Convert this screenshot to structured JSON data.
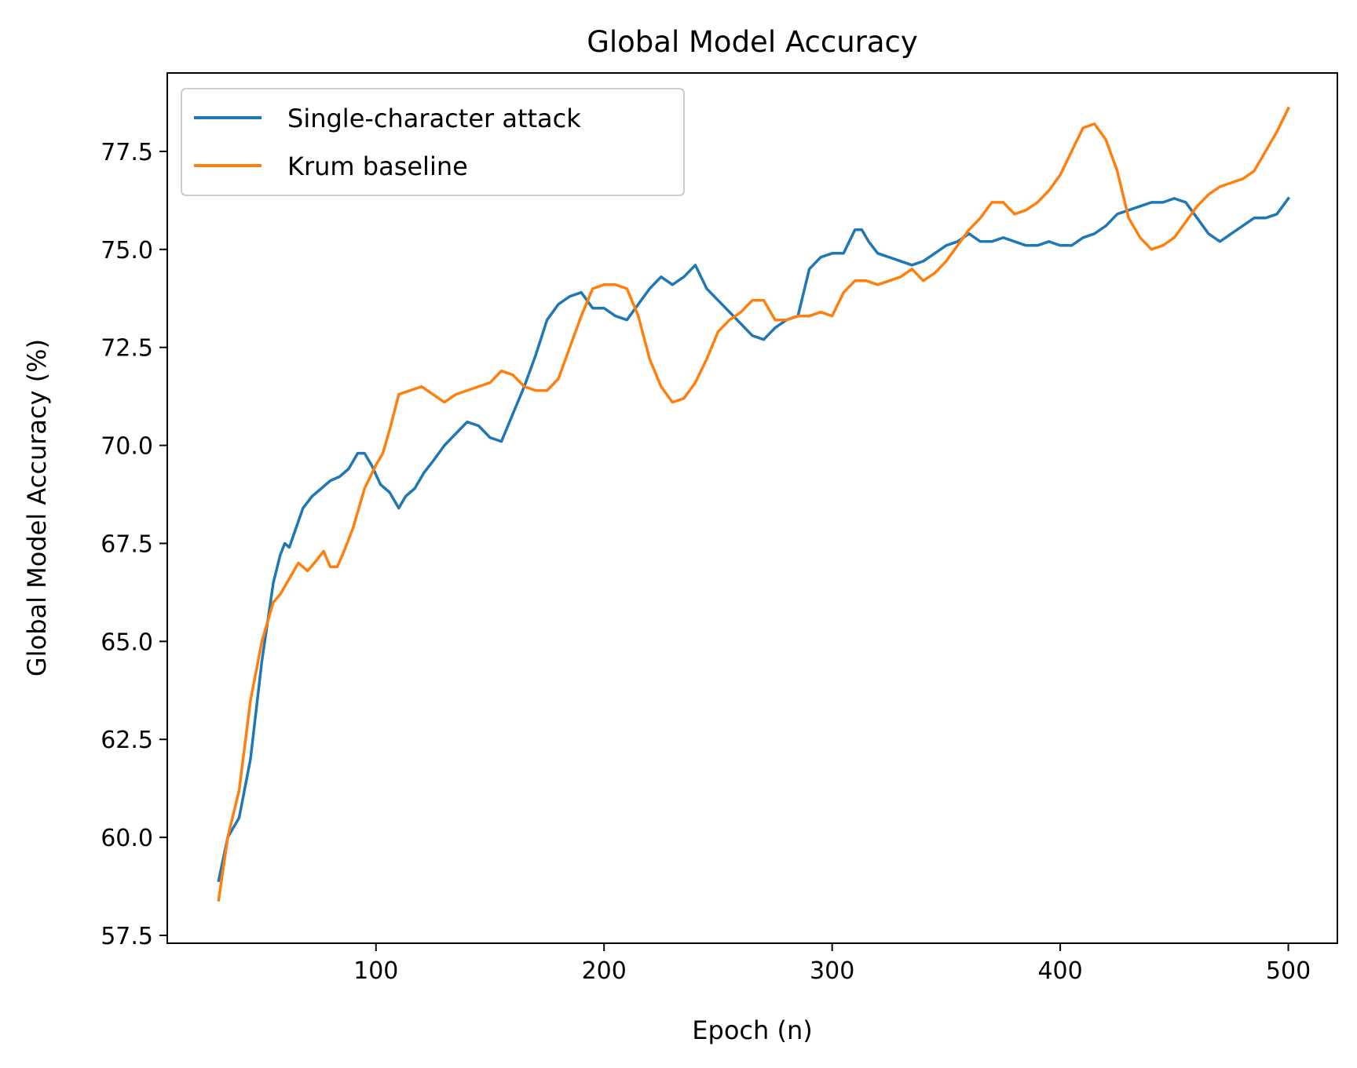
{
  "chart_data": {
    "type": "line",
    "title": "Global Model Accuracy",
    "xlabel": "Epoch (n)",
    "ylabel": "Global Model Accuracy (%)",
    "xlim": [
      8.5,
      521.5
    ],
    "ylim": [
      57.3,
      79.5
    ],
    "xticks": [
      100,
      200,
      300,
      400,
      500
    ],
    "yticks": [
      57.5,
      60.0,
      62.5,
      65.0,
      67.5,
      70.0,
      72.5,
      75.0,
      77.5
    ],
    "ytick_labels": [
      "57.5",
      "60.0",
      "62.5",
      "65.0",
      "67.5",
      "70.0",
      "72.5",
      "75.0",
      "77.5"
    ],
    "grid": false,
    "legend": "upper-left",
    "series": [
      {
        "name": "Single-character attack",
        "color": "#1f77b4",
        "x": [
          31,
          35,
          40,
          45,
          50,
          55,
          58,
          60,
          62,
          65,
          68,
          72,
          76,
          80,
          84,
          88,
          92,
          95,
          98,
          102,
          106,
          110,
          113,
          117,
          121,
          125,
          130,
          135,
          140,
          145,
          150,
          155,
          160,
          165,
          170,
          175,
          180,
          185,
          190,
          195,
          200,
          205,
          210,
          215,
          220,
          225,
          230,
          235,
          240,
          245,
          250,
          255,
          260,
          265,
          270,
          275,
          280,
          285,
          290,
          295,
          300,
          305,
          310,
          313,
          316,
          320,
          325,
          330,
          335,
          340,
          345,
          350,
          355,
          360,
          365,
          370,
          375,
          380,
          385,
          390,
          395,
          400,
          405,
          410,
          415,
          420,
          425,
          430,
          435,
          440,
          445,
          450,
          455,
          460,
          465,
          470,
          475,
          480,
          485,
          490,
          495,
          500
        ],
        "y": [
          58.9,
          60.0,
          60.5,
          62.0,
          64.5,
          66.5,
          67.2,
          67.5,
          67.4,
          67.9,
          68.4,
          68.7,
          68.9,
          69.1,
          69.2,
          69.4,
          69.8,
          69.8,
          69.5,
          69.0,
          68.8,
          68.4,
          68.7,
          68.9,
          69.3,
          69.6,
          70.0,
          70.3,
          70.6,
          70.5,
          70.2,
          70.1,
          70.8,
          71.5,
          72.3,
          73.2,
          73.6,
          73.8,
          73.9,
          73.5,
          73.5,
          73.3,
          73.2,
          73.6,
          74.0,
          74.3,
          74.1,
          74.3,
          74.6,
          74.0,
          73.7,
          73.4,
          73.1,
          72.8,
          72.7,
          73.0,
          73.2,
          73.3,
          74.5,
          74.8,
          74.9,
          74.9,
          75.5,
          75.5,
          75.2,
          74.9,
          74.8,
          74.7,
          74.6,
          74.7,
          74.9,
          75.1,
          75.2,
          75.4,
          75.2,
          75.2,
          75.3,
          75.2,
          75.1,
          75.1,
          75.2,
          75.1,
          75.1,
          75.3,
          75.4,
          75.6,
          75.9,
          76.0,
          76.1,
          76.2,
          76.2,
          76.3,
          76.2,
          75.8,
          75.4,
          75.2,
          75.4,
          75.6,
          75.8,
          75.8,
          75.9,
          76.3
        ]
      },
      {
        "name": "Krum baseline",
        "color": "#ff7f0e",
        "x": [
          31,
          35,
          40,
          45,
          50,
          55,
          58,
          62,
          66,
          70,
          73,
          77,
          80,
          83,
          86,
          90,
          95,
          100,
          103,
          106,
          110,
          115,
          120,
          125,
          130,
          135,
          140,
          145,
          150,
          155,
          160,
          165,
          170,
          175,
          180,
          185,
          190,
          195,
          200,
          205,
          210,
          215,
          220,
          225,
          230,
          235,
          240,
          245,
          250,
          255,
          260,
          265,
          270,
          275,
          280,
          285,
          290,
          295,
          300,
          305,
          310,
          315,
          320,
          325,
          330,
          335,
          340,
          345,
          350,
          355,
          360,
          365,
          370,
          375,
          380,
          385,
          390,
          395,
          400,
          405,
          410,
          415,
          420,
          425,
          430,
          435,
          440,
          445,
          450,
          455,
          460,
          465,
          470,
          475,
          480,
          485,
          490,
          495,
          500
        ],
        "y": [
          58.4,
          60.0,
          61.2,
          63.5,
          65.0,
          66.0,
          66.2,
          66.6,
          67.0,
          66.8,
          67.0,
          67.3,
          66.9,
          66.9,
          67.3,
          67.9,
          68.9,
          69.5,
          69.8,
          70.4,
          71.3,
          71.4,
          71.5,
          71.3,
          71.1,
          71.3,
          71.4,
          71.5,
          71.6,
          71.9,
          71.8,
          71.5,
          71.4,
          71.4,
          71.7,
          72.5,
          73.3,
          74.0,
          74.1,
          74.1,
          74.0,
          73.3,
          72.2,
          71.5,
          71.1,
          71.2,
          71.6,
          72.2,
          72.9,
          73.2,
          73.4,
          73.7,
          73.7,
          73.2,
          73.2,
          73.3,
          73.3,
          73.4,
          73.3,
          73.9,
          74.2,
          74.2,
          74.1,
          74.2,
          74.3,
          74.5,
          74.2,
          74.4,
          74.7,
          75.1,
          75.5,
          75.8,
          76.2,
          76.2,
          75.9,
          76.0,
          76.2,
          76.5,
          76.9,
          77.5,
          78.1,
          78.2,
          77.8,
          77.0,
          75.8,
          75.3,
          75.0,
          75.1,
          75.3,
          75.7,
          76.1,
          76.4,
          76.6,
          76.7,
          76.8,
          77.0,
          77.5,
          78.0,
          78.6
        ]
      }
    ]
  }
}
